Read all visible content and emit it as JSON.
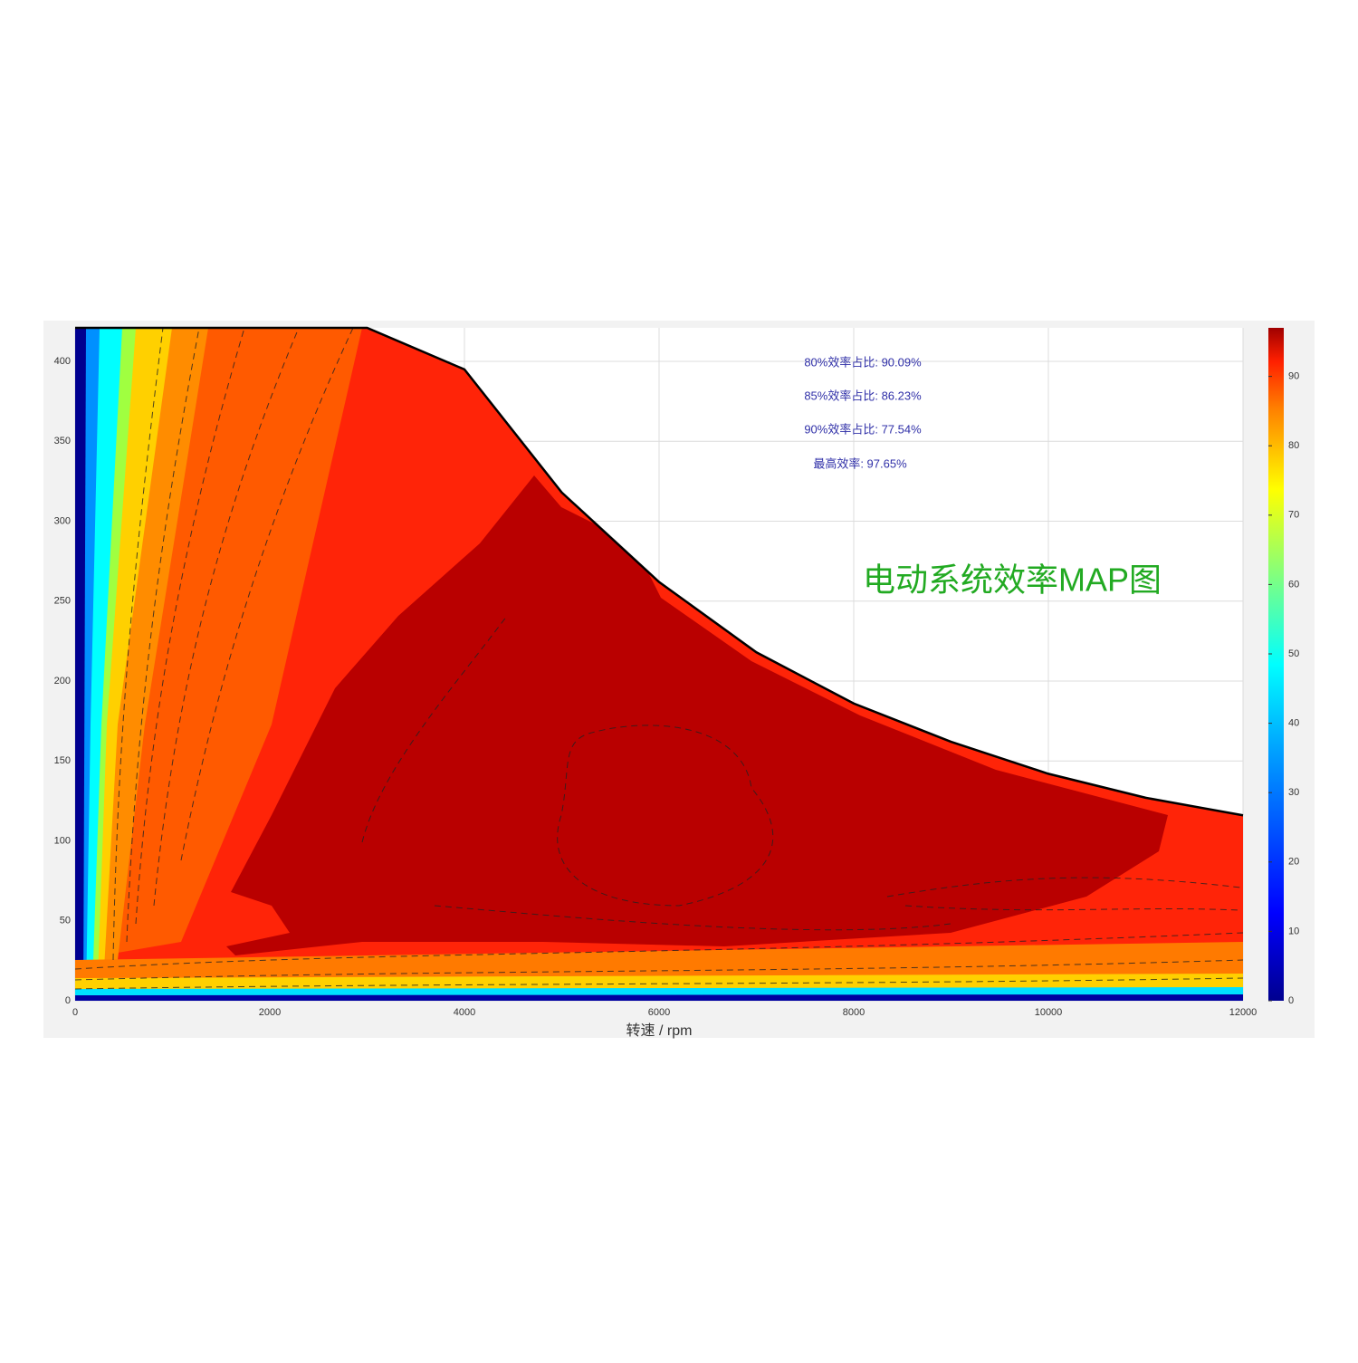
{
  "chart_data": {
    "type": "contour",
    "title": "电动系统效率MAP图",
    "xlabel": "转速 / rpm",
    "annotations": [
      "80%效率占比: 90.09%",
      "85%效率占比: 86.23%",
      "90%效率占比: 77.54%",
      "最高效率: 97.65%"
    ],
    "x": [
      0,
      3000,
      4000,
      5000,
      6000,
      7000,
      8000,
      9000,
      10000,
      11000,
      12000
    ],
    "values": [
      421,
      421,
      395,
      318,
      262,
      218,
      186,
      162,
      142,
      127,
      116
    ],
    "color": "#000000",
    "xlim": [
      0,
      12000
    ],
    "xticks": [
      0,
      2000,
      4000,
      6000,
      8000,
      10000,
      12000
    ],
    "ylim": [
      0,
      421
    ],
    "yticks": [
      0,
      50,
      100,
      150,
      200,
      250,
      300,
      350,
      400
    ],
    "clim": [
      0,
      97
    ],
    "cticks": [
      0,
      10,
      20,
      30,
      40,
      50,
      60,
      70,
      80,
      90
    ],
    "grid": true
  }
}
